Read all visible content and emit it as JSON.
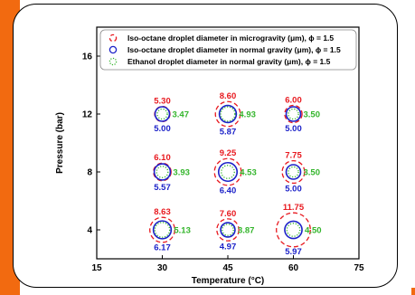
{
  "colors": {
    "accent": "#f26a10",
    "micro": "#e8191f",
    "normal": "#1c22c8",
    "ethanol": "#33b52b"
  },
  "chart_data": {
    "type": "scatter",
    "xlabel": "Temperature (°C)",
    "ylabel": "Pressure (bar)",
    "xlim": [
      15,
      75
    ],
    "ylim": [
      2,
      18
    ],
    "xticks": [
      "15",
      "30",
      "45",
      "60",
      "75"
    ],
    "yticks": [
      "4",
      "8",
      "12",
      "16"
    ],
    "legend_position": "top",
    "series": [
      {
        "name": "Iso-octane droplet diameter in microgravity (μm), ϕ = 1.5",
        "color": "#e8191f",
        "dash": true,
        "points": [
          {
            "x": 30,
            "y": 12,
            "value": 5.3
          },
          {
            "x": 45,
            "y": 12,
            "value": 8.6
          },
          {
            "x": 60,
            "y": 12,
            "value": 6.0
          },
          {
            "x": 30,
            "y": 8,
            "value": 6.1
          },
          {
            "x": 45,
            "y": 8,
            "value": 9.25
          },
          {
            "x": 60,
            "y": 8,
            "value": 7.75
          },
          {
            "x": 30,
            "y": 4,
            "value": 8.63
          },
          {
            "x": 45,
            "y": 4,
            "value": 7.6
          },
          {
            "x": 60,
            "y": 4,
            "value": 11.75
          }
        ],
        "labels": [
          "5.30",
          "8.60",
          "6.00",
          "6.10",
          "9.25",
          "7.75",
          "8.63",
          "7.60",
          "11.75"
        ]
      },
      {
        "name": "Iso-octane droplet diameter in normal gravity (μm), ϕ = 1.5",
        "color": "#1c22c8",
        "dash": false,
        "points": [
          {
            "x": 30,
            "y": 12,
            "value": 5.0
          },
          {
            "x": 45,
            "y": 12,
            "value": 5.87
          },
          {
            "x": 60,
            "y": 12,
            "value": 5.0
          },
          {
            "x": 30,
            "y": 8,
            "value": 5.57
          },
          {
            "x": 45,
            "y": 8,
            "value": 6.4
          },
          {
            "x": 60,
            "y": 8,
            "value": 5.0
          },
          {
            "x": 30,
            "y": 4,
            "value": 6.17
          },
          {
            "x": 45,
            "y": 4,
            "value": 4.97
          },
          {
            "x": 60,
            "y": 4,
            "value": 5.97
          }
        ],
        "labels": [
          "5.00",
          "5.87",
          "5.00",
          "5.57",
          "6.40",
          "5.00",
          "6.17",
          "4.97",
          "5.97"
        ]
      },
      {
        "name": "Ethanol droplet diameter in normal gravity (μm), ϕ = 1.5",
        "color": "#33b52b",
        "dash": true,
        "points": [
          {
            "x": 30,
            "y": 12,
            "value": 3.47
          },
          {
            "x": 45,
            "y": 12,
            "value": 4.93
          },
          {
            "x": 60,
            "y": 12,
            "value": 3.5
          },
          {
            "x": 30,
            "y": 8,
            "value": 3.93
          },
          {
            "x": 45,
            "y": 8,
            "value": 4.53
          },
          {
            "x": 60,
            "y": 8,
            "value": 3.5
          },
          {
            "x": 30,
            "y": 4,
            "value": 5.13
          },
          {
            "x": 45,
            "y": 4,
            "value": 3.87
          },
          {
            "x": 60,
            "y": 4,
            "value": 4.5
          }
        ],
        "labels": [
          "3.47",
          "4.93",
          "3.50",
          "3.93",
          "4.53",
          "3.50",
          "5.13",
          "3.87",
          "4.50"
        ]
      }
    ]
  }
}
